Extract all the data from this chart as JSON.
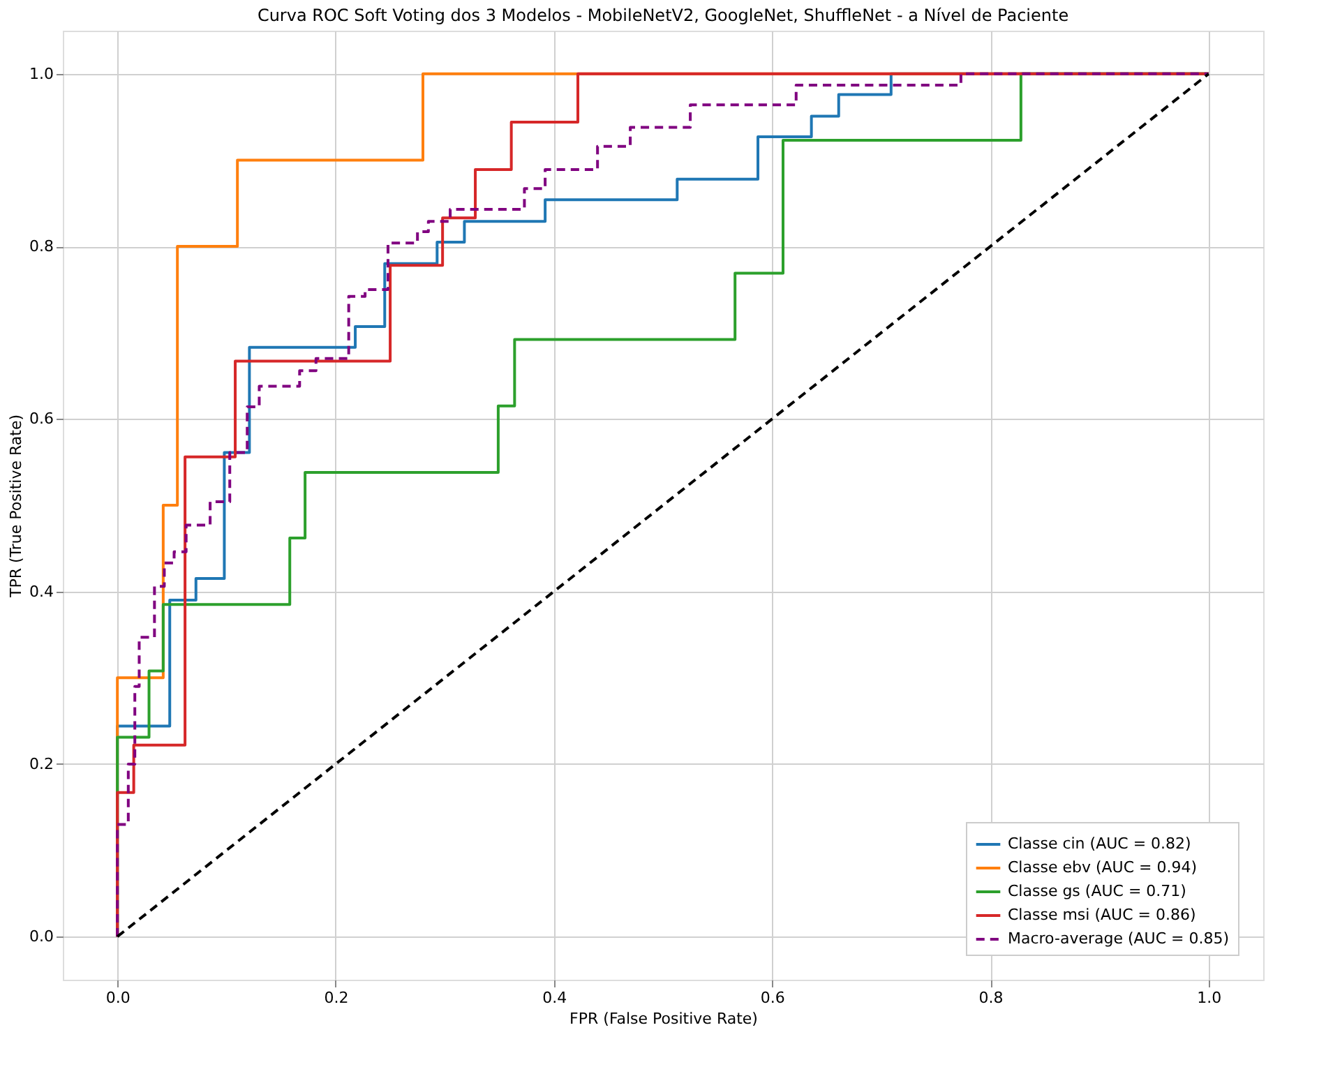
{
  "chart_data": {
    "type": "line",
    "title": "Curva ROC Soft Voting dos 3 Modelos - MobileNetV2, GoogleNet, ShuffleNet - a Nível de Paciente",
    "xlabel": "FPR (False Positive Rate)",
    "ylabel": "TPR (True Positive Rate)",
    "xlim": [
      -0.05,
      1.05
    ],
    "ylim": [
      -0.05,
      1.05
    ],
    "xticks": [
      {
        "value": 0,
        "label": "0.0"
      },
      0.2,
      0.4,
      0.6,
      0.8,
      {
        "value": 1,
        "label": "1.0"
      }
    ],
    "yticks": [
      {
        "value": 0,
        "label": "0.0"
      },
      0.2,
      0.4,
      0.6,
      0.8,
      {
        "value": 1,
        "label": "1.0"
      }
    ],
    "grid": true,
    "legend": "bottom right",
    "marker": "none",
    "series": [
      {
        "name": "Classe cin (AUC = 0.82)",
        "color": "#1f77b4",
        "line_style": "solid",
        "x": [
          0,
          0,
          0.048,
          0.048,
          0.072,
          0.072,
          0.098,
          0.098,
          0.121,
          0.121,
          0.218,
          0.218,
          0.245,
          0.245,
          0.293,
          0.293,
          0.318,
          0.318,
          0.392,
          0.392,
          0.513,
          0.513,
          0.587,
          0.587,
          0.636,
          0.636,
          0.661,
          0.661,
          0.709,
          0.709,
          1
        ],
        "values": [
          0,
          0.244,
          0.244,
          0.39,
          0.39,
          0.415,
          0.415,
          0.561,
          0.561,
          0.683,
          0.683,
          0.707,
          0.707,
          0.78,
          0.78,
          0.805,
          0.805,
          0.829,
          0.829,
          0.854,
          0.854,
          0.878,
          0.878,
          0.927,
          0.927,
          0.951,
          0.951,
          0.976,
          0.976,
          1,
          1
        ]
      },
      {
        "name": "Classe ebv (AUC = 0.94)",
        "color": "#ff7f0e",
        "line_style": "solid",
        "x": [
          0,
          0,
          0.042,
          0.042,
          0.055,
          0.055,
          0.11,
          0.11,
          0.28,
          0.28,
          1
        ],
        "values": [
          0,
          0.3,
          0.3,
          0.5,
          0.5,
          0.8,
          0.8,
          0.9,
          0.9,
          1,
          1
        ]
      },
      {
        "name": "Classe gs (AUC = 0.71)",
        "color": "#2ca02c",
        "line_style": "solid",
        "x": [
          0,
          0,
          0.029,
          0.029,
          0.042,
          0.042,
          0.158,
          0.158,
          0.172,
          0.172,
          0.349,
          0.349,
          0.364,
          0.364,
          0.566,
          0.566,
          0.61,
          0.61,
          0.828,
          0.828,
          1
        ],
        "values": [
          0,
          0.231,
          0.231,
          0.308,
          0.308,
          0.385,
          0.385,
          0.462,
          0.462,
          0.538,
          0.538,
          0.615,
          0.615,
          0.692,
          0.692,
          0.769,
          0.769,
          0.923,
          0.923,
          1,
          1
        ]
      },
      {
        "name": "Classe msi (AUC = 0.86)",
        "color": "#d62728",
        "line_style": "solid",
        "x": [
          0,
          0,
          0.015,
          0.015,
          0.062,
          0.062,
          0.108,
          0.108,
          0.25,
          0.25,
          0.298,
          0.298,
          0.328,
          0.328,
          0.361,
          0.361,
          0.422,
          0.422,
          1
        ],
        "values": [
          0,
          0.167,
          0.167,
          0.222,
          0.222,
          0.556,
          0.556,
          0.667,
          0.667,
          0.778,
          0.778,
          0.833,
          0.833,
          0.889,
          0.889,
          0.944,
          0.944,
          1,
          1
        ]
      },
      {
        "name": "Macro-average (AUC = 0.85)",
        "color": "#800080",
        "line_style": "dashed",
        "x": [
          0,
          0,
          0.01,
          0.01,
          0.016,
          0.016,
          0.02,
          0.02,
          0.034,
          0.034,
          0.043,
          0.043,
          0.052,
          0.052,
          0.063,
          0.063,
          0.085,
          0.085,
          0.103,
          0.103,
          0.119,
          0.119,
          0.13,
          0.13,
          0.167,
          0.167,
          0.182,
          0.182,
          0.212,
          0.212,
          0.227,
          0.227,
          0.248,
          0.248,
          0.275,
          0.275,
          0.285,
          0.285,
          0.305,
          0.305,
          0.373,
          0.373,
          0.392,
          0.392,
          0.44,
          0.44,
          0.47,
          0.47,
          0.525,
          0.525,
          0.622,
          0.622,
          0.773,
          0.773,
          1
        ],
        "values": [
          0,
          0.13,
          0.13,
          0.2,
          0.2,
          0.29,
          0.29,
          0.347,
          0.347,
          0.406,
          0.406,
          0.433,
          0.433,
          0.446,
          0.446,
          0.477,
          0.477,
          0.504,
          0.504,
          0.561,
          0.561,
          0.614,
          0.614,
          0.638,
          0.638,
          0.656,
          0.656,
          0.67,
          0.67,
          0.742,
          0.742,
          0.75,
          0.75,
          0.804,
          0.804,
          0.817,
          0.817,
          0.829,
          0.829,
          0.843,
          0.843,
          0.867,
          0.867,
          0.889,
          0.889,
          0.916,
          0.916,
          0.938,
          0.938,
          0.964,
          0.964,
          0.987,
          0.987,
          1,
          1
        ]
      },
      {
        "color": "#000000",
        "line_style": "dashed",
        "x": [
          0,
          1
        ],
        "values": [
          0,
          1
        ]
      }
    ]
  }
}
